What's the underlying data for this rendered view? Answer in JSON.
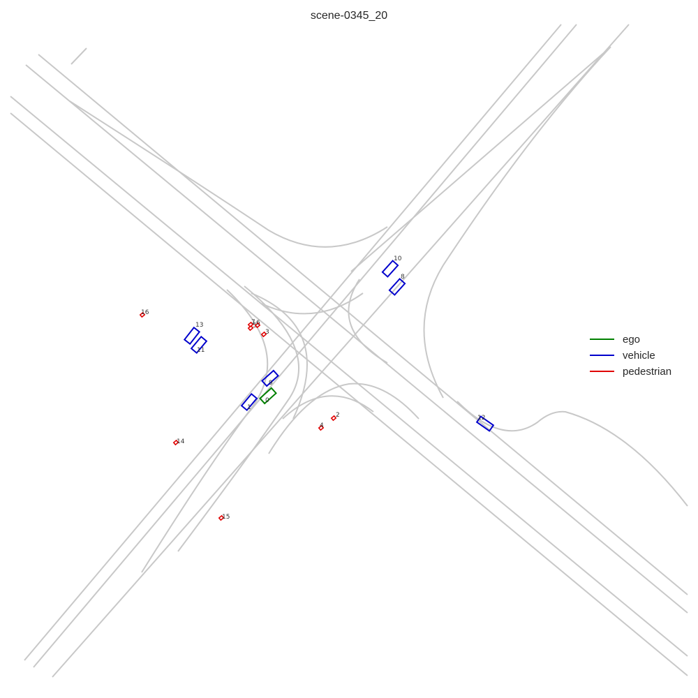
{
  "title": "scene-0345_20",
  "colors": {
    "ego": "#008000",
    "vehicle": "#0000cc",
    "pedestrian": "#e00000",
    "lane": "#c8c8c8"
  },
  "legend": [
    {
      "key": "ego",
      "label": "ego"
    },
    {
      "key": "vehicle",
      "label": "vehicle"
    },
    {
      "key": "pedestrian",
      "label": "pedestrian"
    }
  ],
  "agents": [
    {
      "id": "0",
      "type": "ego"
    },
    {
      "id": "1",
      "type": "vehicle"
    },
    {
      "id": "9",
      "type": "vehicle"
    },
    {
      "id": "8",
      "type": "vehicle"
    },
    {
      "id": "10",
      "type": "vehicle"
    },
    {
      "id": "11",
      "type": "vehicle"
    },
    {
      "id": "13",
      "type": "vehicle"
    },
    {
      "id": "12",
      "type": "vehicle"
    },
    {
      "id": "2",
      "type": "pedestrian"
    },
    {
      "id": "3",
      "type": "pedestrian"
    },
    {
      "id": "4",
      "type": "pedestrian"
    },
    {
      "id": "5",
      "type": "pedestrian"
    },
    {
      "id": "6",
      "type": "pedestrian"
    },
    {
      "id": "7",
      "type": "pedestrian"
    },
    {
      "id": "14",
      "type": "pedestrian"
    },
    {
      "id": "15",
      "type": "pedestrian"
    },
    {
      "id": "16",
      "type": "pedestrian"
    }
  ]
}
